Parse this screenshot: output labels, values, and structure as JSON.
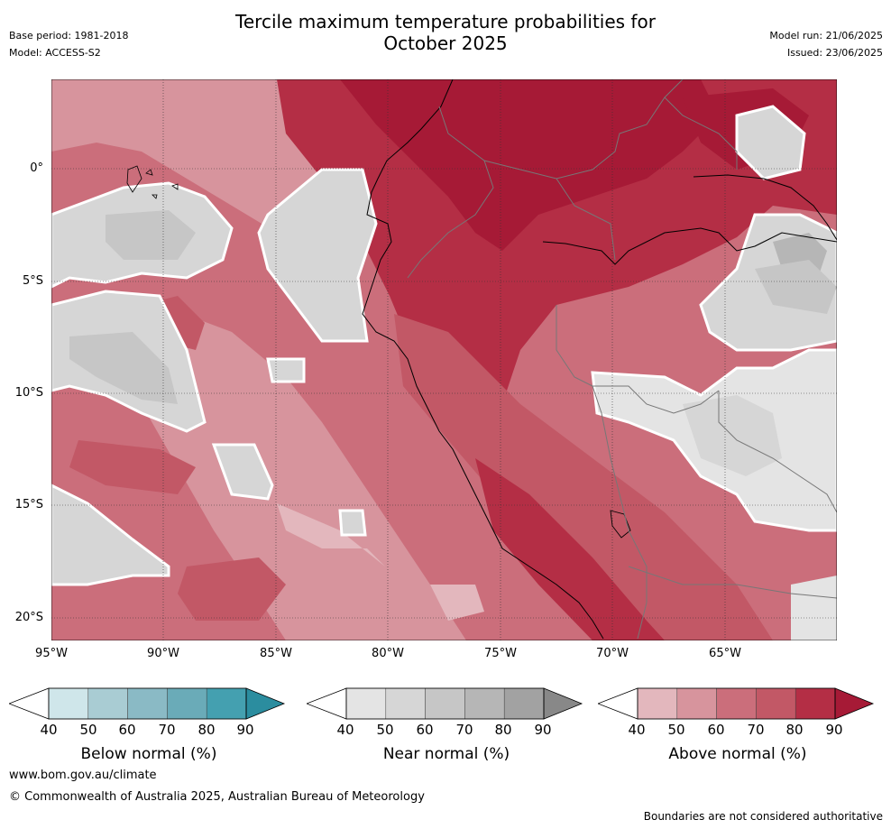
{
  "title_line1": "Tercile maximum temperature probabilities for",
  "title_line2": "October 2025",
  "meta_left": {
    "base_period": "Base period: 1981-2018",
    "model": "Model: ACCESS-S2"
  },
  "meta_right": {
    "model_run": "Model run: 21/06/2025",
    "issued": "Issued: 23/06/2025"
  },
  "lat_labels": [
    "0°",
    "5°S",
    "10°S",
    "15°S",
    "20°S"
  ],
  "lon_labels": [
    "95°W",
    "90°W",
    "85°W",
    "80°W",
    "75°W",
    "70°W",
    "65°W"
  ],
  "colorbars": [
    {
      "name": "below",
      "label": "Below normal (%)",
      "ticks": [
        "40",
        "50",
        "60",
        "70",
        "80",
        "90"
      ],
      "colors": [
        "#cfe6ea",
        "#a9ccd3",
        "#8abac5",
        "#6aabb8",
        "#44a0b0",
        "#2b8d9f"
      ]
    },
    {
      "name": "near",
      "label": "Near normal (%)",
      "ticks": [
        "40",
        "50",
        "60",
        "70",
        "80",
        "90"
      ],
      "colors": [
        "#e4e4e4",
        "#d6d6d6",
        "#c6c6c6",
        "#b6b6b6",
        "#a2a2a2",
        "#888888"
      ]
    },
    {
      "name": "above",
      "label": "Above normal (%)",
      "ticks": [
        "40",
        "50",
        "60",
        "70",
        "80",
        "90"
      ],
      "colors": [
        "#e3b7bd",
        "#d7949d",
        "#cb6e7b",
        "#c25866",
        "#b42e45",
        "#a61a36"
      ]
    }
  ],
  "footer": {
    "website": "www.bom.gov.au/climate",
    "copyright": "© Commonwealth of Australia 2025, Australian Bureau of Meteorology",
    "disclaimer": "Boundaries are not considered authoritative"
  }
}
